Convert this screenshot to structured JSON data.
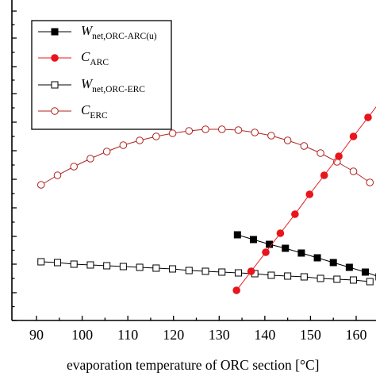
{
  "chart_data": {
    "type": "line",
    "xlabel": "evaporation temperature of ORC section [°C]",
    "xlim": [
      85,
      165
    ],
    "x_ticks": [
      "90",
      "100",
      "110",
      "120",
      "130",
      "140",
      "150",
      "160"
    ],
    "grid": false,
    "legend": {
      "placement": "top-left"
    },
    "series": [
      {
        "name": "W",
        "name_sub": "net,ORC-ARC(u)",
        "marker": "square-filled",
        "line": true,
        "color": "#000000",
        "x": [
          134,
          137.5,
          141,
          144.5,
          148,
          151.5,
          155,
          158.5,
          162,
          165
        ],
        "y": [
          296,
          302,
          308,
          313,
          319,
          325,
          331,
          337,
          343,
          349
        ]
      },
      {
        "name": "C",
        "name_sub": "ARC",
        "marker": "circle-filled",
        "line": true,
        "color": "#e8151b",
        "x": [
          133.8,
          137,
          140.2,
          143.4,
          146.6,
          149.8,
          153,
          156.2,
          159.4,
          162.6,
          165.8
        ],
        "y": [
          366,
          342,
          318,
          294,
          270,
          245,
          221,
          197,
          172,
          148,
          124
        ]
      },
      {
        "name": "W",
        "name_sub": "net,ORC-ERC",
        "marker": "square-open",
        "line": true,
        "color": "#000000",
        "x": [
          91,
          94.6,
          98.2,
          101.8,
          105.4,
          109,
          112.6,
          116.2,
          119.8,
          123.4,
          127,
          130.6,
          134.2,
          137.8,
          141.4,
          145,
          148.6,
          152.2,
          155.8,
          159.4,
          163
        ],
        "y": [
          330,
          331,
          333,
          334,
          335,
          336,
          337,
          338,
          339,
          341,
          342,
          343,
          344,
          345,
          347,
          348,
          349,
          351,
          352,
          353,
          355
        ]
      },
      {
        "name": "C",
        "name_sub": "ERC",
        "marker": "circle-open",
        "line": true,
        "color": "#b22222",
        "x": [
          91,
          94.6,
          98.2,
          101.8,
          105.4,
          109,
          112.6,
          116.2,
          119.8,
          123.4,
          127,
          130.6,
          134.2,
          137.8,
          141.4,
          145,
          148.6,
          152.2,
          155.8,
          159.4,
          163
        ],
        "y": [
          233,
          221,
          210,
          200,
          191,
          183,
          177,
          172,
          168,
          165,
          163,
          163,
          164,
          167,
          171,
          177,
          184,
          193,
          204,
          216,
          230
        ]
      }
    ]
  }
}
